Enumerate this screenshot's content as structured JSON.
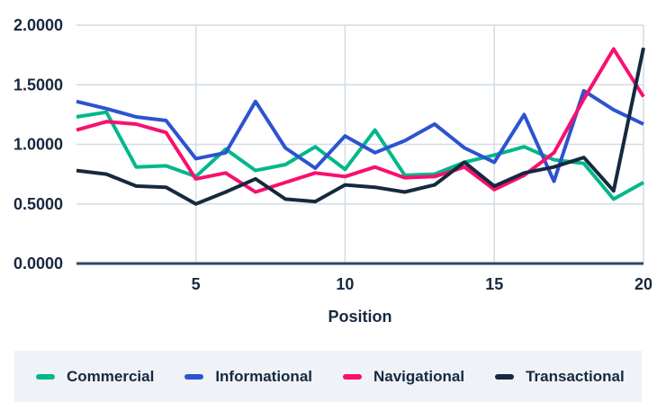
{
  "chart_data": {
    "type": "line",
    "title": "",
    "xlabel": "Position",
    "ylabel": "",
    "xlim": [
      1,
      20
    ],
    "ylim": [
      0,
      2
    ],
    "x_ticks": [
      5,
      10,
      15,
      20
    ],
    "y_ticks": [
      "2.0000",
      "1.5000",
      "1.0000",
      "0.5000",
      "0.0000"
    ],
    "y_tick_values": [
      2.0,
      1.5,
      1.0,
      0.5,
      0.0
    ],
    "grid": true,
    "legend_position": "bottom",
    "x": [
      1,
      2,
      3,
      4,
      5,
      6,
      7,
      8,
      9,
      10,
      11,
      12,
      13,
      14,
      15,
      16,
      17,
      18,
      19,
      20
    ],
    "series": [
      {
        "name": "Commercial",
        "color": "#00B88A",
        "values": [
          1.23,
          1.27,
          0.81,
          0.82,
          0.73,
          0.96,
          0.78,
          0.83,
          0.98,
          0.79,
          1.12,
          0.74,
          0.75,
          0.85,
          0.91,
          0.98,
          0.87,
          0.84,
          0.54,
          0.68
        ]
      },
      {
        "name": "Informational",
        "color": "#2D53D0",
        "values": [
          1.36,
          1.3,
          1.23,
          1.2,
          0.88,
          0.93,
          1.36,
          0.97,
          0.8,
          1.07,
          0.93,
          1.03,
          1.17,
          0.97,
          0.85,
          1.25,
          0.69,
          1.45,
          1.29,
          1.17
        ]
      },
      {
        "name": "Navigational",
        "color": "#F8106E",
        "values": [
          1.12,
          1.19,
          1.17,
          1.1,
          0.71,
          0.76,
          0.6,
          0.68,
          0.76,
          0.73,
          0.81,
          0.72,
          0.73,
          0.81,
          0.62,
          0.74,
          0.93,
          1.38,
          1.8,
          1.4
        ]
      },
      {
        "name": "Transactional",
        "color": "#16293E",
        "values": [
          0.78,
          0.75,
          0.65,
          0.64,
          0.5,
          0.6,
          0.71,
          0.54,
          0.52,
          0.66,
          0.64,
          0.6,
          0.66,
          0.85,
          0.65,
          0.76,
          0.81,
          0.89,
          0.61,
          1.81
        ]
      }
    ]
  },
  "colors": {
    "grid": "#D2DCE6",
    "axis_line": "#2C4963",
    "text": "#17293E",
    "legend_bg": "#EFF2F7",
    "background": "#FFFFFF"
  }
}
